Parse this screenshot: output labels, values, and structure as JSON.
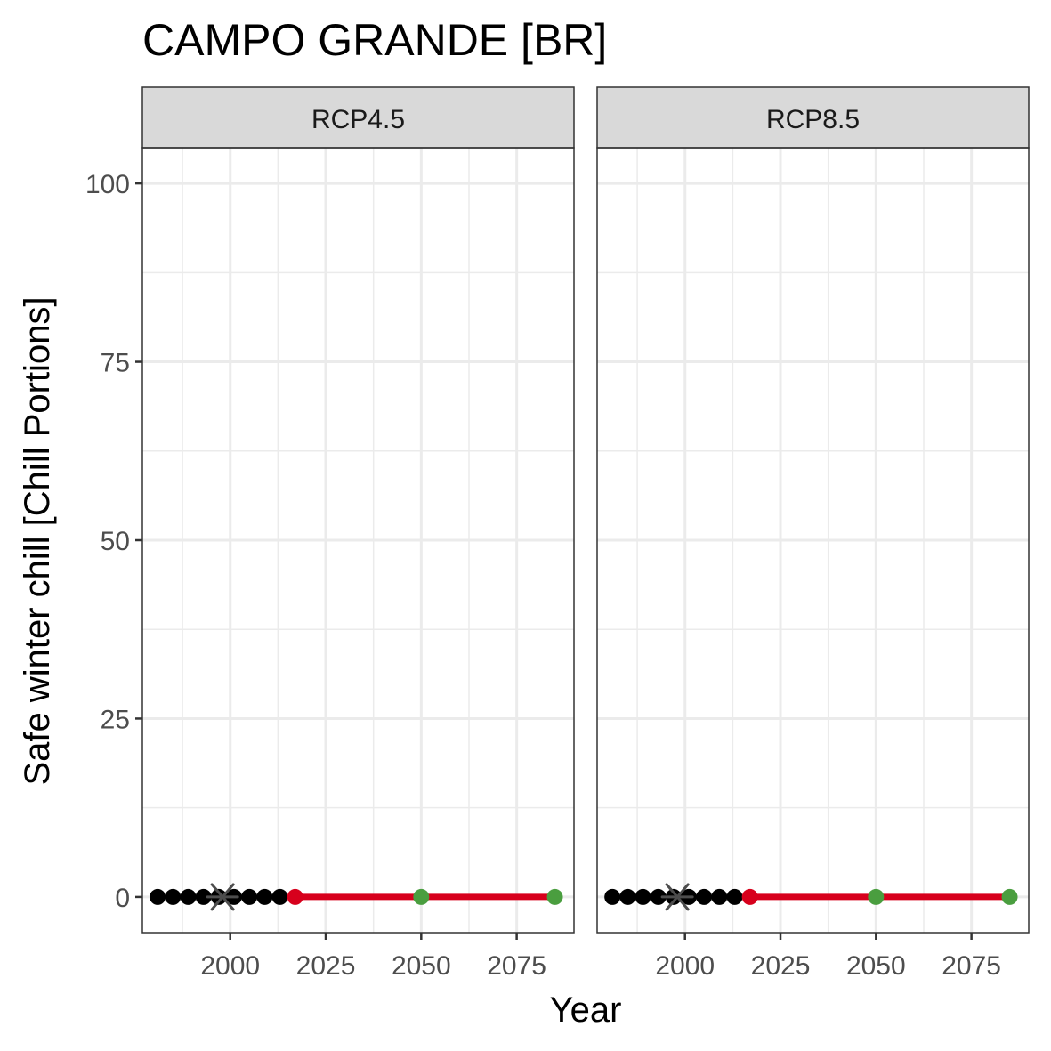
{
  "title": "CAMPO GRANDE [BR]",
  "chart_data": {
    "type": "line",
    "title": "CAMPO GRANDE [BR]",
    "xlabel": "Year",
    "ylabel": "Safe winter chill [Chill Portions]",
    "xlim": [
      1977,
      2090
    ],
    "ylim": [
      -5,
      105
    ],
    "x_ticks": [
      "2000",
      "2025",
      "2050",
      "2075"
    ],
    "y_ticks": [
      "0",
      "25",
      "50",
      "75",
      "100"
    ],
    "grid": true,
    "colors": {
      "historic": "#000000",
      "past_scenario_marker": "#4d4d4d",
      "current": "#d7001c",
      "future": "#4a9e3f",
      "projection_line": "#d7001c"
    },
    "facets": [
      {
        "label": "RCP4.5",
        "historic_points": {
          "x": [
            1981,
            1985,
            1989,
            1993,
            1997,
            2001,
            2005,
            2009,
            2013
          ],
          "y": [
            0,
            0,
            0,
            0,
            0,
            0,
            0,
            0,
            0
          ]
        },
        "past_scenario_point": {
          "x": 1998,
          "y": 0
        },
        "current_point": {
          "x": 2017,
          "y": 0
        },
        "future_points": {
          "x": [
            2050,
            2085
          ],
          "y": [
            0,
            0
          ]
        },
        "projection_line": {
          "x": [
            2017,
            2085
          ],
          "y": [
            0,
            0
          ]
        }
      },
      {
        "label": "RCP8.5",
        "historic_points": {
          "x": [
            1981,
            1985,
            1989,
            1993,
            1997,
            2001,
            2005,
            2009,
            2013
          ],
          "y": [
            0,
            0,
            0,
            0,
            0,
            0,
            0,
            0,
            0
          ]
        },
        "past_scenario_point": {
          "x": 1998,
          "y": 0
        },
        "current_point": {
          "x": 2017,
          "y": 0
        },
        "future_points": {
          "x": [
            2050,
            2085
          ],
          "y": [
            0,
            0
          ]
        },
        "projection_line": {
          "x": [
            2017,
            2085
          ],
          "y": [
            0,
            0
          ]
        }
      }
    ]
  }
}
